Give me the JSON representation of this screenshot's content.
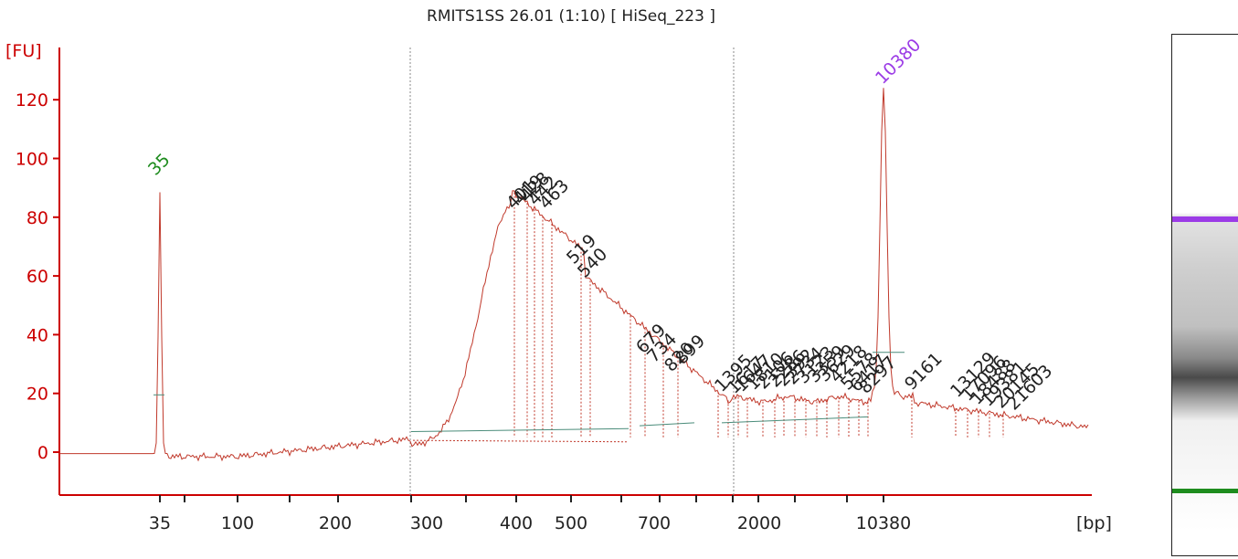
{
  "title": "RMITS1SS 26.01 (1:10)  [ HiSeq_223 ]",
  "colors": {
    "trace": "#c0392b",
    "axis": "#cc0000",
    "lower_marker": "#1e8c1e",
    "upper_marker": "#9b3be6",
    "baseline": "#4a8c7a"
  },
  "chart_data": {
    "type": "line",
    "title": "RMITS1SS 26.01 (1:10)  [ HiSeq_223 ]",
    "ylabel": "[FU]",
    "xlabel": "[bp]",
    "ylim": [
      -15,
      135
    ],
    "yticks": [
      0,
      20,
      40,
      60,
      80,
      100,
      120
    ],
    "xtick_labels": [
      "35",
      "100",
      "200",
      "300",
      "400",
      "500",
      "700",
      "2000",
      "10380"
    ],
    "markers": [
      {
        "label": "35",
        "size_bp": 35,
        "height": 89,
        "color": "lower"
      },
      {
        "label": "10380",
        "size_bp": 10380,
        "height": 124,
        "color": "upper"
      }
    ],
    "peak_labels": [
      "401",
      "419",
      "428",
      "442",
      "463",
      "519",
      "540",
      "679",
      "734",
      "820",
      "899",
      "1395",
      "1617",
      "1647",
      "1810",
      "2106",
      "2286",
      "2392",
      "2734",
      "3123",
      "3359",
      "3629",
      "4218",
      "5578",
      "6417",
      "8297",
      "9161",
      "13129",
      "17096",
      "18488",
      "19381",
      "20145",
      "21603"
    ],
    "peaks": [
      {
        "label": "401",
        "height": 80
      },
      {
        "label": "419",
        "height": 82
      },
      {
        "label": "428",
        "height": 83
      },
      {
        "label": "442",
        "height": 82
      },
      {
        "label": "463",
        "height": 79
      },
      {
        "label": "519",
        "height": 62
      },
      {
        "label": "540",
        "height": 56
      },
      {
        "label": "679",
        "height": 32
      },
      {
        "label": "734",
        "height": 28
      },
      {
        "label": "820",
        "height": 24
      },
      {
        "label": "899",
        "height": 21
      },
      {
        "label": "1395",
        "height": 17
      },
      {
        "label": "13129",
        "height": 19
      },
      {
        "label": "21603",
        "height": 13
      }
    ]
  }
}
